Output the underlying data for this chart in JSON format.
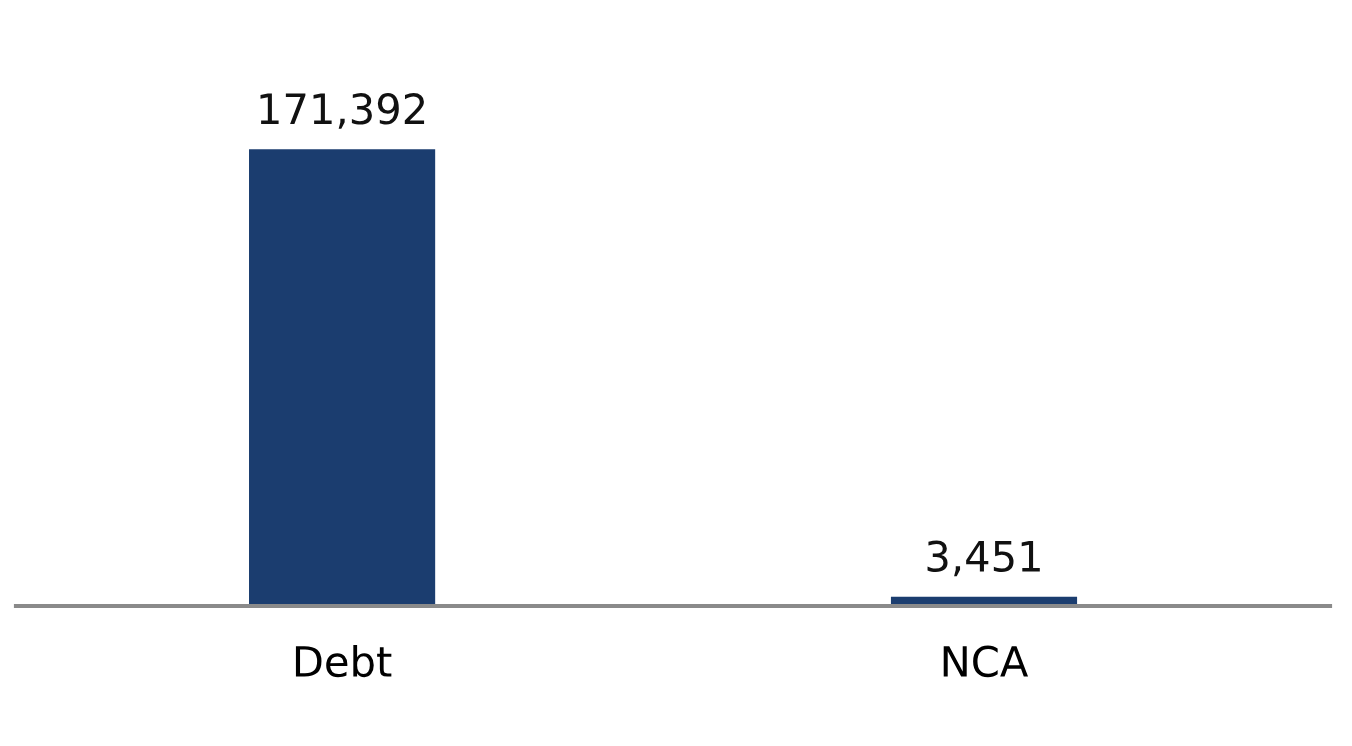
{
  "chart_data": {
    "type": "bar",
    "categories": [
      "Debt",
      "NCA"
    ],
    "values": [
      171392,
      3451
    ],
    "color": "#1b3d6f",
    "value_labels": [
      "171,392",
      "3,451"
    ],
    "grid": false,
    "legend": false
  }
}
